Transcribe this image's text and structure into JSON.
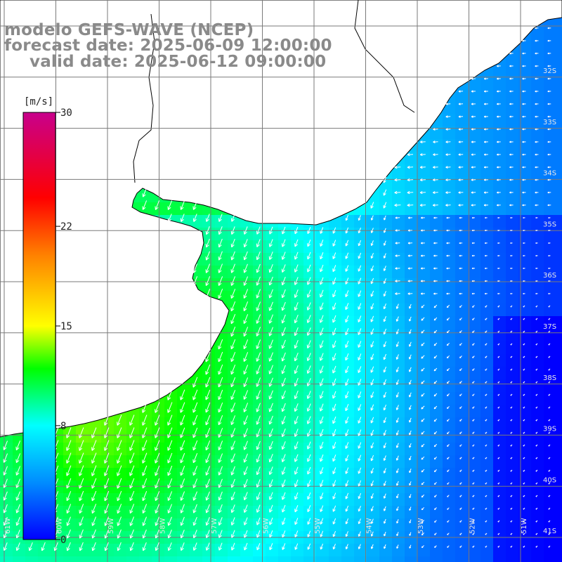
{
  "header": {
    "line1": "modelo GEFS-WAVE (NCEP)",
    "line2": "forecast date: 2025-06-09 12:00:00",
    "line3": "valid date: 2025-06-12 09:00:00"
  },
  "colorbar": {
    "unit": "[m/s]",
    "ticks": [
      {
        "value": 30,
        "label": "30"
      },
      {
        "value": 22,
        "label": "22"
      },
      {
        "value": 15,
        "label": "15"
      },
      {
        "value": 8,
        "label": "8"
      },
      {
        "value": 0,
        "label": "0"
      }
    ],
    "colors": [
      "#0000ff",
      "#00aaff",
      "#00ffff",
      "#00ff00",
      "#ffff00",
      "#ff8800",
      "#ff0000",
      "#cc0088"
    ]
  },
  "map": {
    "variable": "wind speed",
    "units": "m/s",
    "lon_range": [
      -61,
      -50
    ],
    "lat_range": [
      -41.3,
      -30.5
    ],
    "lat_labels": [
      "32S",
      "33S",
      "34S",
      "35S",
      "36S",
      "37S",
      "38S",
      "39S",
      "40S",
      "41S"
    ],
    "lon_labels": [
      "61W",
      "60W",
      "59W",
      "58W",
      "57W",
      "56W",
      "55W",
      "54W",
      "53W",
      "52W",
      "51W"
    ],
    "land_color": "#ffffff",
    "coast_color": "#000000",
    "grid_color": "#888888",
    "arrow_color": "#ffffff"
  }
}
